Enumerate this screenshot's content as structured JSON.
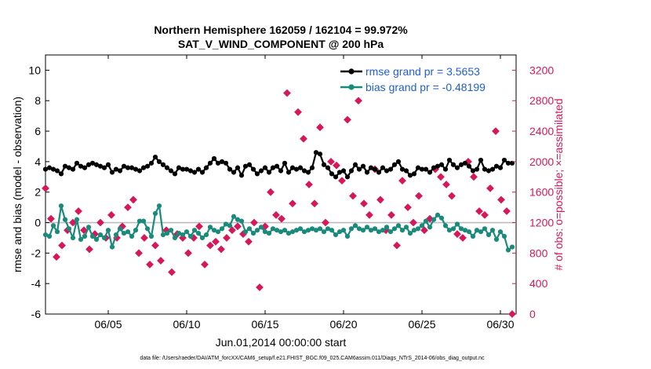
{
  "chart_data": {
    "type": "line",
    "title": "Northern Hemisphere 162059 / 162104 = 99.972%",
    "subtitle": "SAT_V_WIND_COMPONENT @ 200 hPa",
    "xlabel": "Jun.01,2014 00:00:00 start",
    "ylabel": "rmse and bias (model - observation)",
    "ylabel_right": "# of obs: o=possible; ×=assimilated",
    "footnote": "data file: /Users/raeder/DAI/ATM_forcXX/CAM6_setup/f.e21.FHIST_BGC.f09_025.CAM6assim.011/Diags_NTrS_2014-06/obs_diag_output.nc",
    "xlim": [
      1,
      31
    ],
    "ylim": [
      -6,
      11
    ],
    "ylim_right": [
      0,
      3400
    ],
    "x_ticks": [
      5,
      10,
      15,
      20,
      25,
      30
    ],
    "x_tick_labels": [
      "06/05",
      "06/10",
      "06/15",
      "06/20",
      "06/25",
      "06/30"
    ],
    "y_ticks": [
      -6,
      -4,
      -2,
      0,
      2,
      4,
      6,
      8,
      10
    ],
    "y_tick_labels": [
      "-6",
      "-4",
      "-2",
      "0",
      "2",
      "4",
      "6",
      "8",
      "10"
    ],
    "y_ticks_right": [
      0,
      400,
      800,
      1200,
      1600,
      2000,
      2400,
      2800,
      3200
    ],
    "y_tick_labels_right": [
      "0",
      "400",
      "800",
      "1200",
      "1600",
      "2000",
      "2400",
      "2800",
      "3200"
    ],
    "reference_line": 0,
    "grid": false,
    "legend_position": "top-right",
    "colors": {
      "rmse": "#000000",
      "bias": "#1a8a7a",
      "obs": "#d6185a",
      "zero_line": "#bbbbbb",
      "legend_text": "#1f5fd0"
    },
    "series": [
      {
        "name": "rmse grand pr = 3.5653",
        "x": [
          1.0,
          1.25,
          1.5,
          1.75,
          2.0,
          2.25,
          2.5,
          2.75,
          3.0,
          3.25,
          3.5,
          3.75,
          4.0,
          4.25,
          4.5,
          4.75,
          5.0,
          5.25,
          5.5,
          5.75,
          6.0,
          6.25,
          6.5,
          6.75,
          7.0,
          7.25,
          7.5,
          7.75,
          8.0,
          8.25,
          8.5,
          8.75,
          9.0,
          9.25,
          9.5,
          9.75,
          10.0,
          10.25,
          10.5,
          10.75,
          11.0,
          11.25,
          11.5,
          11.75,
          12.0,
          12.25,
          12.5,
          12.75,
          13.0,
          13.25,
          13.5,
          13.75,
          14.0,
          14.25,
          14.5,
          14.75,
          15.0,
          15.25,
          15.5,
          15.75,
          16.0,
          16.25,
          16.5,
          16.75,
          17.0,
          17.25,
          17.5,
          17.75,
          18.0,
          18.25,
          18.5,
          18.75,
          19.0,
          19.25,
          19.5,
          19.75,
          20.0,
          20.25,
          20.5,
          20.75,
          21.0,
          21.25,
          21.5,
          21.75,
          22.0,
          22.25,
          22.5,
          22.75,
          23.0,
          23.25,
          23.5,
          23.75,
          24.0,
          24.25,
          24.5,
          24.75,
          25.0,
          25.25,
          25.5,
          25.75,
          26.0,
          26.25,
          26.5,
          26.75,
          27.0,
          27.25,
          27.5,
          27.75,
          28.0,
          28.25,
          28.5,
          28.75,
          29.0,
          29.25,
          29.5,
          29.75,
          30.0,
          30.25,
          30.5,
          30.75
        ],
        "values": [
          3.5,
          3.6,
          3.5,
          3.4,
          3.2,
          3.7,
          3.6,
          3.5,
          3.9,
          3.7,
          3.6,
          3.8,
          3.9,
          3.8,
          3.7,
          3.6,
          3.8,
          3.3,
          3.5,
          3.4,
          3.7,
          3.6,
          3.6,
          3.5,
          3.4,
          3.6,
          3.7,
          3.9,
          4.3,
          4.0,
          3.8,
          3.6,
          3.4,
          3.2,
          3.6,
          3.5,
          3.5,
          3.4,
          3.3,
          3.5,
          3.3,
          3.6,
          3.9,
          4.2,
          3.9,
          4.0,
          3.9,
          3.5,
          3.3,
          3.6,
          3.1,
          3.7,
          3.8,
          3.5,
          3.2,
          3.4,
          3.6,
          3.3,
          3.6,
          3.7,
          3.4,
          3.9,
          3.3,
          3.6,
          3.5,
          3.6,
          3.4,
          3.3,
          3.6,
          4.6,
          4.5,
          3.8,
          3.6,
          3.2,
          3.0,
          3.3,
          3.4,
          3.0,
          3.4,
          3.8,
          3.5,
          3.7,
          3.3,
          3.6,
          3.5,
          3.3,
          3.6,
          3.4,
          3.5,
          3.8,
          4.0,
          3.5,
          3.4,
          3.1,
          3.2,
          3.6,
          3.5,
          3.5,
          3.3,
          3.6,
          3.7,
          3.8,
          3.5,
          4.1,
          3.8,
          3.6,
          3.8,
          3.9,
          3.7,
          3.4,
          3.5,
          4.1,
          3.5,
          3.4,
          3.5,
          3.7,
          3.6,
          4.1,
          3.9,
          3.9
        ]
      },
      {
        "name": "bias grand pr = -0.48199",
        "x": [
          1.0,
          1.25,
          1.5,
          1.75,
          2.0,
          2.25,
          2.5,
          2.75,
          3.0,
          3.25,
          3.5,
          3.75,
          4.0,
          4.25,
          4.5,
          4.75,
          5.0,
          5.25,
          5.5,
          5.75,
          6.0,
          6.25,
          6.5,
          6.75,
          7.0,
          7.25,
          7.5,
          7.75,
          8.0,
          8.25,
          8.5,
          8.75,
          9.0,
          9.25,
          9.5,
          9.75,
          10.0,
          10.25,
          10.5,
          10.75,
          11.0,
          11.25,
          11.5,
          11.75,
          12.0,
          12.25,
          12.5,
          12.75,
          13.0,
          13.25,
          13.5,
          13.75,
          14.0,
          14.25,
          14.5,
          14.75,
          15.0,
          15.25,
          15.5,
          15.75,
          16.0,
          16.25,
          16.5,
          16.75,
          17.0,
          17.25,
          17.5,
          17.75,
          18.0,
          18.25,
          18.5,
          18.75,
          19.0,
          19.25,
          19.5,
          19.75,
          20.0,
          20.25,
          20.5,
          20.75,
          21.0,
          21.25,
          21.5,
          21.75,
          22.0,
          22.25,
          22.5,
          22.75,
          23.0,
          23.25,
          23.5,
          23.75,
          24.0,
          24.25,
          24.5,
          24.75,
          25.0,
          25.25,
          25.5,
          25.75,
          26.0,
          26.25,
          26.5,
          26.75,
          27.0,
          27.25,
          27.5,
          27.75,
          28.0,
          28.25,
          28.5,
          28.75,
          29.0,
          29.25,
          29.5,
          29.75,
          30.0,
          30.25,
          30.5,
          30.75
        ],
        "values": [
          -0.8,
          -0.9,
          -0.2,
          -0.6,
          1.1,
          0.2,
          -0.4,
          -1.0,
          0.2,
          -1.1,
          -0.9,
          -0.3,
          -0.9,
          -1.1,
          -0.8,
          -1.0,
          -0.5,
          -1.6,
          -0.8,
          -0.4,
          -0.7,
          -0.6,
          -0.9,
          -0.5,
          0.1,
          0.1,
          -0.4,
          -0.9,
          0.6,
          1.1,
          -0.8,
          -0.7,
          -0.5,
          -1.0,
          -0.7,
          -0.8,
          -0.6,
          -0.9,
          -0.5,
          -0.7,
          -1.0,
          -0.8,
          -0.3,
          -0.5,
          -0.6,
          -0.4,
          -0.1,
          -0.2,
          0.4,
          0.2,
          0.1,
          -0.6,
          -0.4,
          -0.7,
          -0.5,
          -0.3,
          -0.6,
          -0.7,
          -0.4,
          -0.5,
          -0.6,
          -0.5,
          -0.7,
          -0.6,
          -0.5,
          -0.4,
          -0.6,
          -0.5,
          -0.4,
          -0.5,
          -0.4,
          -0.6,
          -0.4,
          -0.5,
          -0.8,
          -0.6,
          -0.5,
          -0.9,
          -0.4,
          -0.2,
          -0.4,
          -0.5,
          -0.3,
          -0.5,
          -0.4,
          -0.6,
          -0.5,
          -0.3,
          -0.6,
          -0.4,
          -0.2,
          -0.5,
          -0.3,
          -0.7,
          -0.5,
          -0.4,
          -0.2,
          0.1,
          -0.3,
          0.2,
          0.5,
          0.3,
          -0.2,
          -0.5,
          -0.4,
          -0.1,
          -0.4,
          -0.5,
          -0.6,
          -0.9,
          -0.5,
          -0.6,
          -0.4,
          -0.8,
          -0.5,
          -1.1,
          -0.6,
          -0.9,
          -1.8,
          -1.6
        ]
      },
      {
        "name": "obs possible / assimilated",
        "x": [
          1.0,
          1.35,
          1.7,
          2.05,
          2.4,
          2.75,
          3.1,
          3.45,
          3.8,
          4.15,
          4.5,
          4.85,
          5.2,
          5.55,
          5.9,
          6.25,
          6.6,
          6.95,
          7.3,
          7.65,
          8.0,
          8.35,
          8.7,
          9.05,
          9.4,
          9.75,
          10.1,
          10.45,
          10.8,
          11.15,
          11.5,
          11.85,
          12.2,
          12.55,
          12.9,
          13.25,
          13.6,
          13.95,
          14.3,
          14.65,
          15.0,
          15.35,
          15.7,
          16.05,
          16.4,
          16.75,
          17.1,
          17.45,
          17.8,
          18.15,
          18.5,
          18.85,
          19.2,
          19.55,
          19.9,
          20.25,
          20.6,
          20.95,
          21.3,
          21.65,
          22.0,
          22.35,
          22.7,
          23.05,
          23.4,
          23.75,
          24.1,
          24.45,
          24.8,
          25.15,
          25.5,
          25.85,
          26.2,
          26.55,
          26.9,
          27.25,
          27.6,
          27.95,
          28.3,
          28.65,
          29.0,
          29.35,
          29.7,
          30.05,
          30.4,
          30.75
        ],
        "values": [
          1650,
          1250,
          750,
          900,
          1100,
          1200,
          1350,
          1100,
          850,
          1050,
          1200,
          1000,
          1300,
          1000,
          1150,
          1400,
          1500,
          800,
          1000,
          650,
          900,
          700,
          1100,
          550,
          1050,
          1000,
          800,
          1000,
          1150,
          650,
          900,
          950,
          850,
          1000,
          1100,
          1150,
          1050,
          950,
          1200,
          350,
          1150,
          1600,
          1300,
          1250,
          2900,
          1450,
          2650,
          2300,
          1700,
          1450,
          2450,
          1200,
          2000,
          1950,
          1750,
          2550,
          1550,
          2800,
          1450,
          1300,
          1900,
          1500,
          1100,
          1300,
          900,
          1750,
          1400,
          1200,
          1550,
          1100,
          1250,
          1900,
          1800,
          1700,
          1550,
          1050,
          1000,
          2000,
          1800,
          1350,
          1300,
          1650,
          2400,
          1500,
          1350,
          0
        ]
      }
    ]
  }
}
